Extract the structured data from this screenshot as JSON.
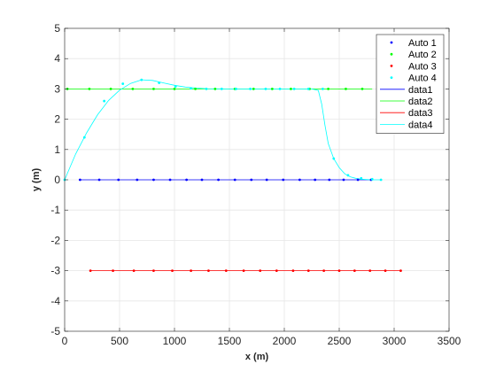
{
  "chart_data": {
    "type": "scatter",
    "xlabel": "x (m)",
    "ylabel": "y (m)",
    "xlim": [
      0,
      3500
    ],
    "ylim": [
      -5,
      5
    ],
    "xticks": [
      0,
      500,
      1000,
      1500,
      2000,
      2500,
      3000,
      3500
    ],
    "yticks": [
      -5,
      -4,
      -3,
      -2,
      -1,
      0,
      1,
      2,
      3,
      4,
      5
    ],
    "xtick_labels": [
      "0",
      "500",
      "1000",
      "1500",
      "2000",
      "2500",
      "3000",
      "3500"
    ],
    "ytick_labels": [
      "-5",
      "-4",
      "-3",
      "-2",
      "-1",
      "0",
      "1",
      "2",
      "3",
      "4",
      "5"
    ],
    "grid": true,
    "legend_position": "top-right",
    "colors": {
      "Auto 1": "#0000ff",
      "Auto 2": "#00ff00",
      "Auto 3": "#ff0000",
      "Auto 4": "#00ffff",
      "data1": "#0000ff",
      "data2": "#00ff00",
      "data3": "#ff0000",
      "data4": "#00ffff"
    },
    "legend": [
      {
        "label": "Auto 1",
        "kind": "marker",
        "series": "Auto 1"
      },
      {
        "label": "Auto 2",
        "kind": "marker",
        "series": "Auto 2"
      },
      {
        "label": "Auto 3",
        "kind": "marker",
        "series": "Auto 3"
      },
      {
        "label": "Auto 4",
        "kind": "marker",
        "series": "Auto 4"
      },
      {
        "label": "data1",
        "kind": "line",
        "series": "data1"
      },
      {
        "label": "data2",
        "kind": "line",
        "series": "data2"
      },
      {
        "label": "data3",
        "kind": "line",
        "series": "data3"
      },
      {
        "label": "data4",
        "kind": "line",
        "series": "data4"
      }
    ],
    "series": [
      {
        "name": "Auto 1",
        "kind": "marker",
        "x": [
          140,
          315,
          490,
          660,
          810,
          960,
          1110,
          1250,
          1400,
          1550,
          1700,
          1840,
          1990,
          2140,
          2280,
          2410,
          2540,
          2670,
          2790
        ],
        "y": [
          0,
          0,
          0,
          0,
          0,
          0,
          0,
          0,
          0,
          0,
          0,
          0,
          0,
          0,
          0,
          0,
          0,
          0,
          0
        ]
      },
      {
        "name": "Auto 2",
        "kind": "marker",
        "x": [
          25,
          225,
          420,
          620,
          810,
          1000,
          1190,
          1370,
          1550,
          1720,
          1890,
          2060,
          2230,
          2400,
          2560,
          2710
        ],
        "y": [
          3,
          3,
          3,
          3,
          3,
          3,
          3,
          3,
          3,
          3,
          3,
          3,
          3,
          3,
          3,
          3
        ]
      },
      {
        "name": "Auto 3",
        "kind": "marker",
        "x": [
          235,
          440,
          630,
          810,
          980,
          1150,
          1310,
          1470,
          1630,
          1780,
          1930,
          2080,
          2220,
          2360,
          2500,
          2640,
          2780,
          2920,
          3060
        ],
        "y": [
          -3,
          -3,
          -3,
          -3,
          -3,
          -3,
          -3,
          -3,
          -3,
          -3,
          -3,
          -3,
          -3,
          -3,
          -3,
          -3,
          -3,
          -3,
          -3
        ]
      },
      {
        "name": "Auto 4",
        "kind": "marker",
        "x": [
          0,
          180,
          360,
          530,
          700,
          860,
          1010,
          1150,
          1290,
          1430,
          1560,
          1690,
          1830,
          1960,
          2090,
          2220,
          2350,
          2450,
          2580,
          2700,
          2800,
          2880
        ],
        "y": [
          0,
          1.4,
          2.6,
          3.17,
          3.3,
          3.2,
          3.08,
          3.02,
          3,
          3,
          3,
          3,
          3,
          3,
          3,
          3,
          3,
          0.7,
          0.15,
          0.05,
          0.02,
          0
        ]
      },
      {
        "name": "data1",
        "kind": "line",
        "x": [
          140,
          2800
        ],
        "y": [
          0,
          0
        ]
      },
      {
        "name": "data2",
        "kind": "line",
        "x": [
          0,
          2800
        ],
        "y": [
          3,
          3
        ]
      },
      {
        "name": "data3",
        "kind": "line",
        "x": [
          230,
          3060
        ],
        "y": [
          -3,
          -3
        ]
      },
      {
        "name": "data4",
        "kind": "line",
        "x": [
          0,
          100,
          200,
          300,
          400,
          500,
          600,
          700,
          800,
          900,
          1000,
          1100,
          1200,
          1300,
          1500,
          1700,
          1900,
          2100,
          2250,
          2310,
          2340,
          2370,
          2400,
          2450,
          2500,
          2550,
          2600,
          2650,
          2700,
          2750,
          2800,
          2880
        ],
        "y": [
          0,
          0.85,
          1.55,
          2.15,
          2.62,
          2.96,
          3.18,
          3.3,
          3.28,
          3.2,
          3.12,
          3.06,
          3.03,
          3.01,
          3,
          3,
          3,
          3,
          3,
          2.95,
          2.5,
          1.8,
          1.2,
          0.7,
          0.4,
          0.2,
          0.1,
          0.05,
          0.02,
          0.01,
          0,
          0
        ]
      }
    ]
  }
}
